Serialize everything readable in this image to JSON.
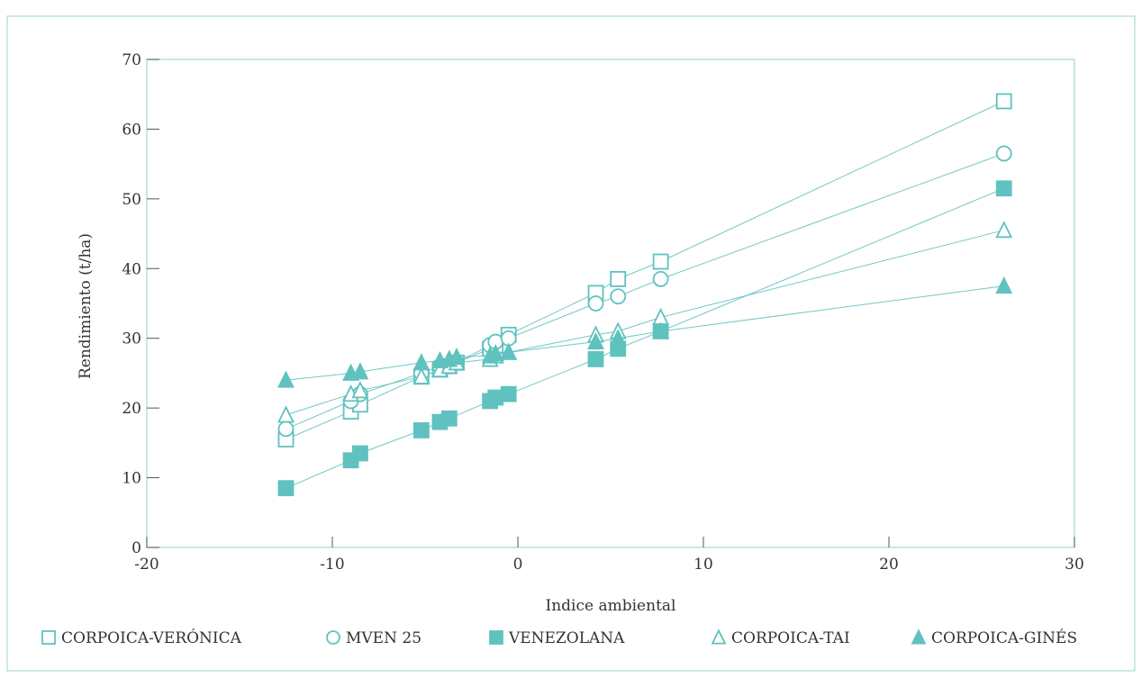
{
  "colors": {
    "series": "#5fc2bf",
    "frame": "#a6dcd8",
    "text": "#333333"
  },
  "chart_data": {
    "type": "line",
    "title": "",
    "xlabel": "Indice ambiental",
    "ylabel": "Rendimiento (t/ha)",
    "xlim": [
      -20,
      30
    ],
    "ylim": [
      0,
      70
    ],
    "x_ticks": [
      -20,
      -10,
      0,
      10,
      20,
      30
    ],
    "y_ticks": [
      0,
      10,
      20,
      30,
      40,
      50,
      60,
      70
    ],
    "grid": false,
    "legend_position": "bottom",
    "series": [
      {
        "name": "CORPOICA-VERÓNICA",
        "marker": "square-open",
        "points": [
          [
            -12.5,
            15.5
          ],
          [
            -9,
            19.5
          ],
          [
            -8.5,
            20.5
          ],
          [
            -5.2,
            24.5
          ],
          [
            -4.2,
            25.5
          ],
          [
            -3.7,
            26
          ],
          [
            -3.3,
            26.5
          ],
          [
            -1.5,
            28.5
          ],
          [
            -1.2,
            29
          ],
          [
            -0.5,
            30.5
          ],
          [
            4.2,
            36.5
          ],
          [
            5.4,
            38.5
          ],
          [
            7.7,
            41
          ],
          [
            26.2,
            64
          ]
        ]
      },
      {
        "name": "MVEN 25",
        "marker": "circle-open",
        "points": [
          [
            -12.5,
            17
          ],
          [
            -9,
            21
          ],
          [
            -8.5,
            22
          ],
          [
            -5.2,
            25
          ],
          [
            -4.2,
            26
          ],
          [
            -3.7,
            26
          ],
          [
            -3.3,
            26.5
          ],
          [
            -1.5,
            29
          ],
          [
            -1.2,
            29.5
          ],
          [
            -0.5,
            30
          ],
          [
            4.2,
            35
          ],
          [
            5.4,
            36
          ],
          [
            7.7,
            38.5
          ],
          [
            26.2,
            56.5
          ]
        ]
      },
      {
        "name": "VENEZOLANA",
        "marker": "square-filled",
        "points": [
          [
            -12.5,
            8.5
          ],
          [
            -9,
            12.5
          ],
          [
            -8.5,
            13.5
          ],
          [
            -5.2,
            16.8
          ],
          [
            -4.2,
            18
          ],
          [
            -3.7,
            18.5
          ],
          [
            -1.5,
            21
          ],
          [
            -1.2,
            21.5
          ],
          [
            -0.5,
            22
          ],
          [
            4.2,
            27
          ],
          [
            5.4,
            28.5
          ],
          [
            7.7,
            31
          ],
          [
            26.2,
            51.5
          ]
        ]
      },
      {
        "name": "CORPOICA-TAI",
        "marker": "triangle-open",
        "points": [
          [
            -12.5,
            19
          ],
          [
            -9,
            22
          ],
          [
            -8.5,
            22.5
          ],
          [
            -5.2,
            24.5
          ],
          [
            -4.2,
            25.5
          ],
          [
            -3.7,
            26
          ],
          [
            -3.3,
            26.5
          ],
          [
            -1.5,
            27
          ],
          [
            -1.2,
            27.5
          ],
          [
            -0.5,
            28
          ],
          [
            4.2,
            30.5
          ],
          [
            5.4,
            31
          ],
          [
            7.7,
            33
          ],
          [
            26.2,
            45.5
          ]
        ]
      },
      {
        "name": "CORPOICA-GINÉS",
        "marker": "triangle-filled",
        "points": [
          [
            -12.5,
            24
          ],
          [
            -9,
            25
          ],
          [
            -8.5,
            25.2
          ],
          [
            -5.2,
            26.5
          ],
          [
            -4.2,
            26.8
          ],
          [
            -3.7,
            27
          ],
          [
            -3.3,
            27.3
          ],
          [
            -1.5,
            27.5
          ],
          [
            -1.2,
            27.8
          ],
          [
            -0.5,
            28
          ],
          [
            4.2,
            29.5
          ],
          [
            5.4,
            30
          ],
          [
            7.7,
            31
          ],
          [
            26.2,
            37.5
          ]
        ]
      }
    ]
  }
}
